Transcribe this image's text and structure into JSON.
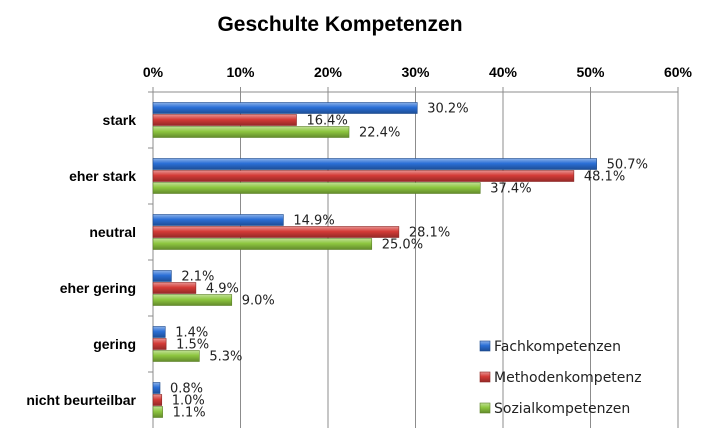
{
  "chart_data": {
    "type": "bar",
    "orientation": "horizontal",
    "title": "Geschulte Kompetenzen",
    "categories": [
      "stark",
      "eher stark",
      "neutral",
      "eher gering",
      "gering",
      "nicht beurteilbar"
    ],
    "series": [
      {
        "name": "Fachkompetenzen",
        "color": "#2a6fd6",
        "values": [
          30.2,
          50.7,
          14.9,
          2.1,
          1.4,
          0.8
        ],
        "labels": [
          "30.2%",
          "50.7%",
          "14.9%",
          "2.1%",
          "1.4%",
          "0.8%"
        ]
      },
      {
        "name": "Methodenkompetenz",
        "color": "#d43b37",
        "values": [
          16.4,
          48.1,
          28.1,
          4.9,
          1.5,
          1.0
        ],
        "labels": [
          "16.4%",
          "48.1%",
          "28.1%",
          "4.9%",
          "1.5%",
          "1.0%"
        ]
      },
      {
        "name": "Sozialkompetenzen",
        "color": "#8dc63f",
        "values": [
          22.4,
          37.4,
          25.0,
          9.0,
          5.3,
          1.1
        ],
        "labels": [
          "22.4%",
          "37.4%",
          "25.0%",
          "9.0%",
          "5.3%",
          "1.1%"
        ]
      }
    ],
    "xlim": [
      0,
      60
    ],
    "xticks": [
      "0%",
      "10%",
      "20%",
      "30%",
      "40%",
      "50%",
      "60%"
    ],
    "xaxis_position": "top",
    "grid": true,
    "legend_position": "bottom-right"
  }
}
